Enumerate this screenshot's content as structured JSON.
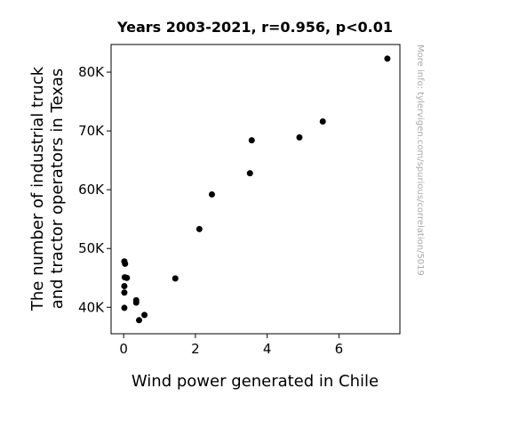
{
  "chart_data": {
    "type": "scatter",
    "title": "Years 2003-2021, r=0.956, p<0.01",
    "xlabel": "Wind power generated in Chile",
    "ylabel_lines": [
      "The number of industrial truck",
      "and tractor operators in Texas"
    ],
    "watermark": "More info: tylervigen.com/spurious/correlation/5019",
    "xlim": [
      -0.35,
      7.7
    ],
    "ylim": [
      35500,
      84700
    ],
    "x_ticks": [
      0,
      2,
      4,
      6
    ],
    "x_tick_labels": [
      "0",
      "2",
      "4",
      "6"
    ],
    "y_ticks": [
      40000,
      50000,
      60000,
      70000,
      80000
    ],
    "y_tick_labels": [
      "40K",
      "50K",
      "60K",
      "70K",
      "80K"
    ],
    "grid": false,
    "marker_color": "#000000",
    "points": [
      {
        "x": 0.02,
        "y": 47800
      },
      {
        "x": 0.04,
        "y": 47400
      },
      {
        "x": 0.03,
        "y": 45100
      },
      {
        "x": 0.09,
        "y": 45000
      },
      {
        "x": 0.02,
        "y": 43600
      },
      {
        "x": 0.02,
        "y": 42500
      },
      {
        "x": 0.02,
        "y": 39900
      },
      {
        "x": 0.35,
        "y": 41200
      },
      {
        "x": 0.35,
        "y": 40800
      },
      {
        "x": 0.58,
        "y": 38700
      },
      {
        "x": 0.43,
        "y": 37800
      },
      {
        "x": 1.44,
        "y": 44900
      },
      {
        "x": 2.11,
        "y": 53300
      },
      {
        "x": 2.46,
        "y": 59200
      },
      {
        "x": 3.52,
        "y": 62800
      },
      {
        "x": 3.57,
        "y": 68400
      },
      {
        "x": 4.9,
        "y": 68900
      },
      {
        "x": 5.55,
        "y": 71600
      },
      {
        "x": 7.35,
        "y": 82300
      }
    ]
  }
}
